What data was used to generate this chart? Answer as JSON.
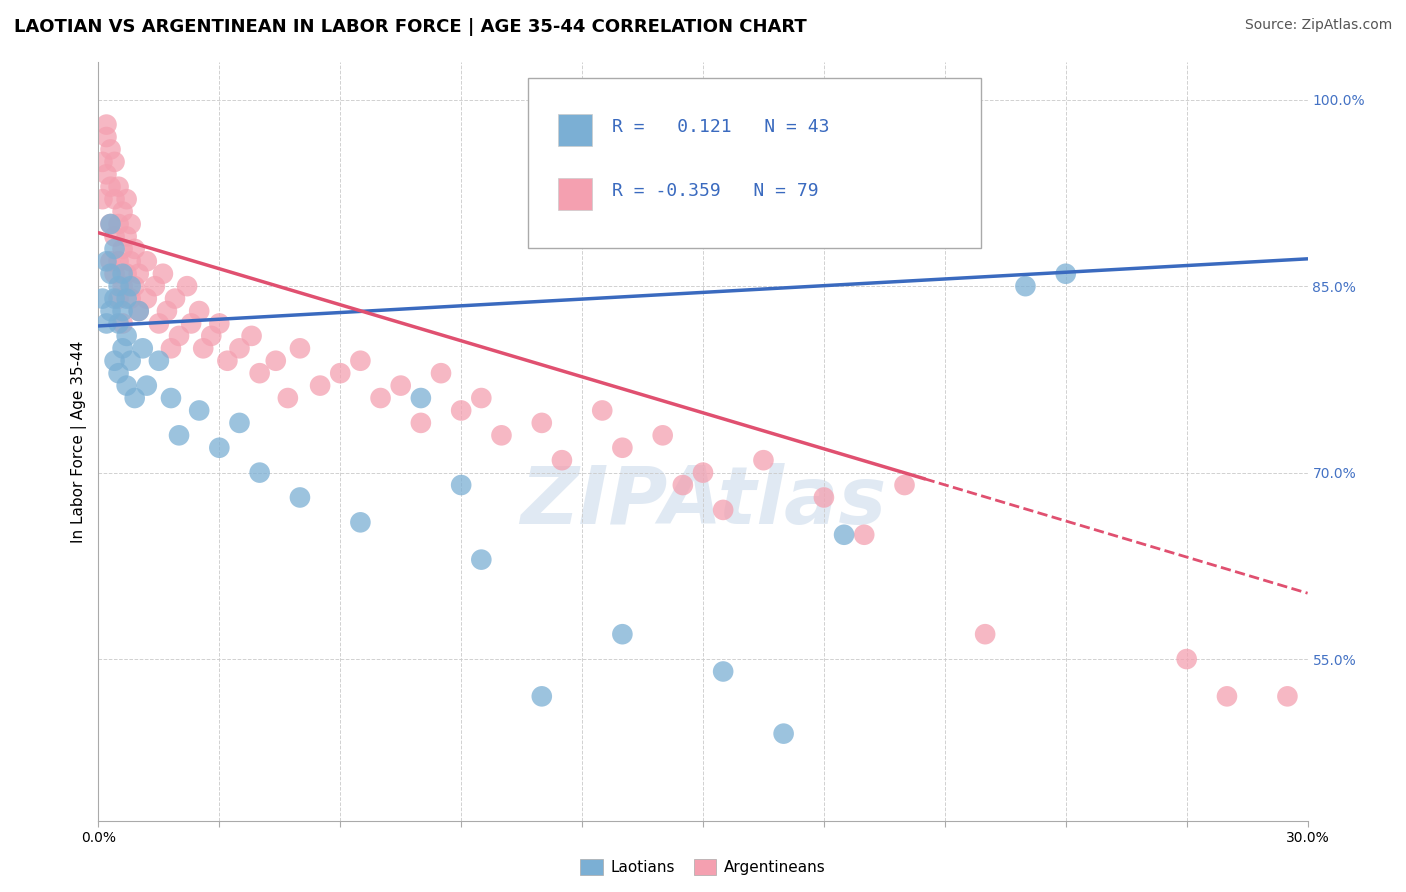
{
  "title": "LAOTIAN VS ARGENTINEAN IN LABOR FORCE | AGE 35-44 CORRELATION CHART",
  "source": "Source: ZipAtlas.com",
  "ylabel": "In Labor Force | Age 35-44",
  "y_tick_values": [
    1.0,
    0.85,
    0.7,
    0.55
  ],
  "xmin": 0.0,
  "xmax": 0.3,
  "ymin": 0.42,
  "ymax": 1.03,
  "laotian_color": "#7bafd4",
  "argentinean_color": "#f4a0b0",
  "laotian_R": "0.121",
  "laotian_N": "43",
  "argentinean_R": "-0.359",
  "argentinean_N": "79",
  "laotian_scatter": [
    [
      0.001,
      0.84
    ],
    [
      0.002,
      0.82
    ],
    [
      0.002,
      0.87
    ],
    [
      0.003,
      0.83
    ],
    [
      0.003,
      0.86
    ],
    [
      0.003,
      0.9
    ],
    [
      0.004,
      0.84
    ],
    [
      0.004,
      0.88
    ],
    [
      0.004,
      0.79
    ],
    [
      0.005,
      0.85
    ],
    [
      0.005,
      0.82
    ],
    [
      0.005,
      0.78
    ],
    [
      0.006,
      0.86
    ],
    [
      0.006,
      0.83
    ],
    [
      0.006,
      0.8
    ],
    [
      0.007,
      0.84
    ],
    [
      0.007,
      0.81
    ],
    [
      0.007,
      0.77
    ],
    [
      0.008,
      0.85
    ],
    [
      0.008,
      0.79
    ],
    [
      0.009,
      0.76
    ],
    [
      0.01,
      0.83
    ],
    [
      0.011,
      0.8
    ],
    [
      0.012,
      0.77
    ],
    [
      0.015,
      0.79
    ],
    [
      0.018,
      0.76
    ],
    [
      0.02,
      0.73
    ],
    [
      0.025,
      0.75
    ],
    [
      0.03,
      0.72
    ],
    [
      0.035,
      0.74
    ],
    [
      0.04,
      0.7
    ],
    [
      0.05,
      0.68
    ],
    [
      0.065,
      0.66
    ],
    [
      0.08,
      0.76
    ],
    [
      0.09,
      0.69
    ],
    [
      0.095,
      0.63
    ],
    [
      0.11,
      0.52
    ],
    [
      0.13,
      0.57
    ],
    [
      0.155,
      0.54
    ],
    [
      0.17,
      0.49
    ],
    [
      0.185,
      0.65
    ],
    [
      0.23,
      0.85
    ],
    [
      0.24,
      0.86
    ]
  ],
  "argentinean_scatter": [
    [
      0.001,
      0.95
    ],
    [
      0.001,
      0.92
    ],
    [
      0.002,
      0.98
    ],
    [
      0.002,
      0.97
    ],
    [
      0.002,
      0.94
    ],
    [
      0.003,
      0.96
    ],
    [
      0.003,
      0.93
    ],
    [
      0.003,
      0.9
    ],
    [
      0.003,
      0.87
    ],
    [
      0.004,
      0.95
    ],
    [
      0.004,
      0.92
    ],
    [
      0.004,
      0.89
    ],
    [
      0.004,
      0.86
    ],
    [
      0.005,
      0.93
    ],
    [
      0.005,
      0.9
    ],
    [
      0.005,
      0.87
    ],
    [
      0.005,
      0.84
    ],
    [
      0.006,
      0.91
    ],
    [
      0.006,
      0.88
    ],
    [
      0.006,
      0.85
    ],
    [
      0.006,
      0.82
    ],
    [
      0.007,
      0.92
    ],
    [
      0.007,
      0.89
    ],
    [
      0.007,
      0.86
    ],
    [
      0.008,
      0.9
    ],
    [
      0.008,
      0.87
    ],
    [
      0.008,
      0.84
    ],
    [
      0.009,
      0.88
    ],
    [
      0.009,
      0.85
    ],
    [
      0.01,
      0.86
    ],
    [
      0.01,
      0.83
    ],
    [
      0.012,
      0.87
    ],
    [
      0.012,
      0.84
    ],
    [
      0.014,
      0.85
    ],
    [
      0.015,
      0.82
    ],
    [
      0.016,
      0.86
    ],
    [
      0.017,
      0.83
    ],
    [
      0.018,
      0.8
    ],
    [
      0.019,
      0.84
    ],
    [
      0.02,
      0.81
    ],
    [
      0.022,
      0.85
    ],
    [
      0.023,
      0.82
    ],
    [
      0.025,
      0.83
    ],
    [
      0.026,
      0.8
    ],
    [
      0.028,
      0.81
    ],
    [
      0.03,
      0.82
    ],
    [
      0.032,
      0.79
    ],
    [
      0.035,
      0.8
    ],
    [
      0.038,
      0.81
    ],
    [
      0.04,
      0.78
    ],
    [
      0.044,
      0.79
    ],
    [
      0.047,
      0.76
    ],
    [
      0.05,
      0.8
    ],
    [
      0.055,
      0.77
    ],
    [
      0.06,
      0.78
    ],
    [
      0.065,
      0.79
    ],
    [
      0.07,
      0.76
    ],
    [
      0.075,
      0.77
    ],
    [
      0.08,
      0.74
    ],
    [
      0.085,
      0.78
    ],
    [
      0.09,
      0.75
    ],
    [
      0.095,
      0.76
    ],
    [
      0.1,
      0.73
    ],
    [
      0.11,
      0.74
    ],
    [
      0.115,
      0.71
    ],
    [
      0.125,
      0.75
    ],
    [
      0.13,
      0.72
    ],
    [
      0.14,
      0.73
    ],
    [
      0.145,
      0.69
    ],
    [
      0.15,
      0.7
    ],
    [
      0.155,
      0.67
    ],
    [
      0.165,
      0.71
    ],
    [
      0.18,
      0.68
    ],
    [
      0.19,
      0.65
    ],
    [
      0.2,
      0.69
    ],
    [
      0.22,
      0.57
    ],
    [
      0.27,
      0.55
    ],
    [
      0.28,
      0.52
    ],
    [
      0.295,
      0.52
    ]
  ],
  "blue_line": {
    "x0": 0.0,
    "y0": 0.818,
    "x1": 0.3,
    "y1": 0.872
  },
  "pink_line_solid": {
    "x0": 0.0,
    "y0": 0.893,
    "x1": 0.205,
    "y1": 0.695
  },
  "pink_line_dashed": {
    "x0": 0.205,
    "y0": 0.695,
    "x1": 0.3,
    "y1": 0.603
  },
  "title_fontsize": 13,
  "source_fontsize": 10,
  "axis_label_fontsize": 11,
  "tick_fontsize": 10,
  "legend_fontsize": 13
}
